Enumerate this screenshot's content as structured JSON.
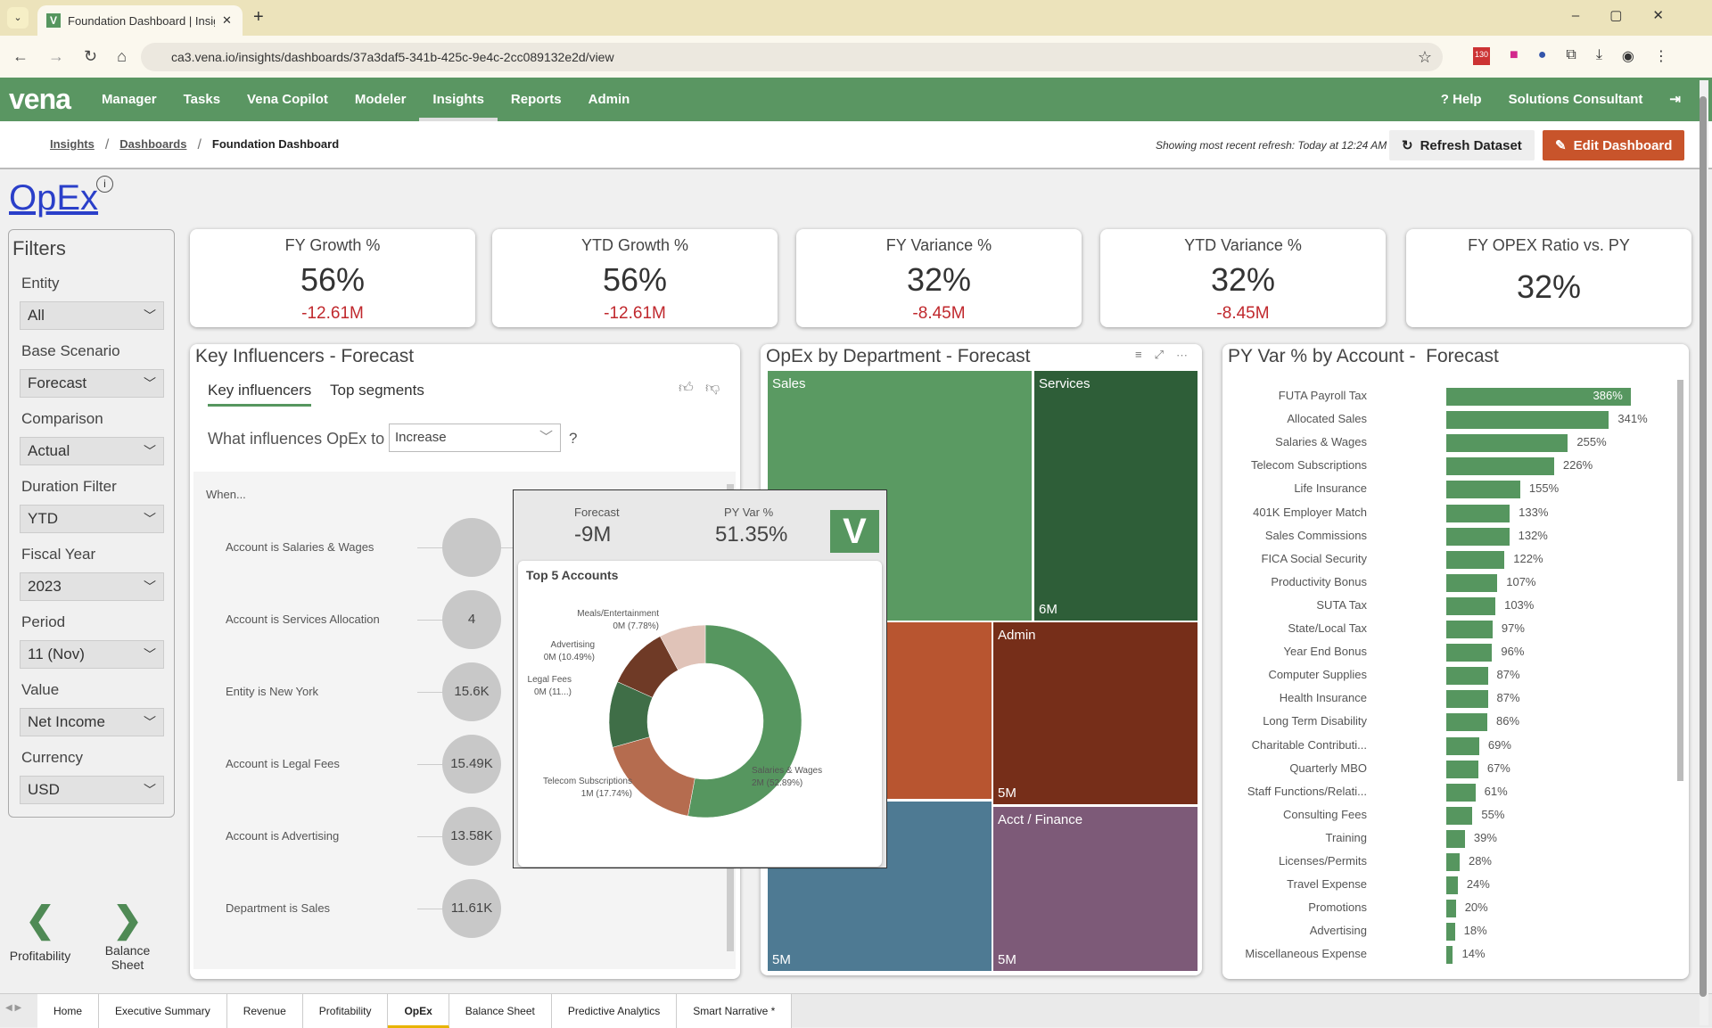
{
  "browser": {
    "tab_title": "Foundation Dashboard | Insights",
    "url": "ca3.vena.io/insights/dashboards/37a3daf5-341b-425c-9e4c-2cc089132e2d/view",
    "ext_badge": "130"
  },
  "nav": {
    "logo": "vena",
    "items": [
      "Manager",
      "Tasks",
      "Vena Copilot",
      "Modeler",
      "Insights",
      "Reports",
      "Admin"
    ],
    "active": "Insights",
    "help": "? Help",
    "user": "Solutions Consultant"
  },
  "breadcrumb": {
    "items": [
      "Insights",
      "Dashboards",
      "Foundation Dashboard"
    ],
    "refresh_note": "Showing most recent refresh: Today at 12:24 AM",
    "refresh_btn": "Refresh Dataset",
    "edit_btn": "Edit Dashboard"
  },
  "colors": {
    "brand": "#5a9662",
    "accent": "#c8542b",
    "negative": "#c0282d"
  },
  "page": {
    "title": "OpEx"
  },
  "filters": {
    "title": "Filters",
    "items": [
      {
        "label": "Entity",
        "value": "All"
      },
      {
        "label": "Base Scenario",
        "value": "Forecast"
      },
      {
        "label": "Comparison",
        "value": "Actual"
      },
      {
        "label": "Duration Filter",
        "value": "YTD"
      },
      {
        "label": "Fiscal Year",
        "value": "2023"
      },
      {
        "label": "Period",
        "value": "11 (Nov)"
      },
      {
        "label": "Value",
        "value": "Net Income"
      },
      {
        "label": "Currency",
        "value": "USD"
      }
    ]
  },
  "nav_arrows": {
    "prev": "Profitability",
    "next": "Balance Sheet"
  },
  "kpis": [
    {
      "title": "FY Growth %",
      "value": "56%",
      "delta": "-12.61M"
    },
    {
      "title": "YTD Growth %",
      "value": "56%",
      "delta": "-12.61M"
    },
    {
      "title": "FY Variance %",
      "value": "32%",
      "delta": "-8.45M"
    },
    {
      "title": "YTD Variance %",
      "value": "32%",
      "delta": "-8.45M"
    },
    {
      "title": "FY OPEX Ratio vs. PY",
      "value": "32%",
      "delta": ""
    }
  ],
  "key_influencers": {
    "title": "Key Influencers -",
    "scenario": "Forecast",
    "tabs": [
      "Key influencers",
      "Top segments"
    ],
    "question": "What influences OpEx to",
    "dropdown": "Increase",
    "qmark": "?",
    "when": "When...",
    "rows": [
      {
        "label": "Account is Salaries & Wages",
        "value": ""
      },
      {
        "label": "Account is Services Allocation",
        "value": "4"
      },
      {
        "label": "Entity is New York",
        "value": "15.6K"
      },
      {
        "label": "Account is Legal Fees",
        "value": "15.49K"
      },
      {
        "label": "Account is Advertising",
        "value": "13.58K"
      },
      {
        "label": "Department is Sales",
        "value": "11.61K"
      }
    ]
  },
  "treemap": {
    "title": "OpEx by Department -",
    "scenario": "Forecast",
    "cells": [
      {
        "name": "Sales",
        "value": "",
        "color": "#5a9a62"
      },
      {
        "name": "Services",
        "value": "6M",
        "color": "#2e5e38"
      },
      {
        "name": "",
        "value": "",
        "color": "#b85530"
      },
      {
        "name": "Admin",
        "value": "5M",
        "color": "#762e19"
      },
      {
        "name": "",
        "value": "5M",
        "color": "#4e7a93"
      },
      {
        "name": "Acct / Finance",
        "value": "5M",
        "color": "#7d5a78"
      }
    ]
  },
  "tooltip": {
    "forecast_label": "Forecast",
    "forecast_value": "-9M",
    "pyvar_label": "PY Var %",
    "pyvar_value": "51.35%",
    "chart_title": "Top 5 Accounts"
  },
  "chart_data": [
    {
      "type": "pie",
      "title": "Top 5 Accounts",
      "donut": true,
      "slices": [
        {
          "name": "Salaries & Wages",
          "label": "2M (52.89%)",
          "percent": 52.89,
          "color": "#56965f"
        },
        {
          "name": "Telecom Subscriptions",
          "label": "1M (17.74%)",
          "percent": 17.74,
          "color": "#b56c4f"
        },
        {
          "name": "Legal Fees",
          "label": "0M (11...)",
          "percent": null,
          "color": "#3f6e47"
        },
        {
          "name": "Advertising",
          "label": "0M (10.49%)",
          "percent": 10.49,
          "color": "#6f3a26"
        },
        {
          "name": "Meals/Entertainment",
          "label": "0M (7.78%)",
          "percent": 7.78,
          "color": "#e0c3b8"
        }
      ]
    },
    {
      "type": "bar",
      "orientation": "horizontal",
      "title": "PY Var % by Account -",
      "subtitle": "Forecast",
      "unit": "%",
      "color": "#56965f",
      "categories": [
        "FUTA Payroll Tax",
        "Allocated Sales",
        "Salaries & Wages",
        "Telecom Subscriptions",
        "Life Insurance",
        "401K Employer Match",
        "Sales Commissions",
        "FICA Social Security",
        "Productivity Bonus",
        "SUTA Tax",
        "State/Local Tax",
        "Year End Bonus",
        "Computer Supplies",
        "Health Insurance",
        "Long Term Disability",
        "Charitable Contributi...",
        "Quarterly MBO",
        "Staff Functions/Relati...",
        "Consulting Fees",
        "Training",
        "Licenses/Permits",
        "Travel Expense",
        "Promotions",
        "Advertising",
        "Miscellaneous Expense"
      ],
      "values": [
        386,
        341,
        255,
        226,
        155,
        133,
        132,
        122,
        107,
        103,
        97,
        96,
        87,
        87,
        86,
        69,
        67,
        61,
        55,
        39,
        28,
        24,
        20,
        18,
        14
      ]
    }
  ],
  "bottom_tabs": {
    "items": [
      "Home",
      "Executive Summary",
      "Revenue",
      "Profitability",
      "OpEx",
      "Balance Sheet",
      "Predictive Analytics",
      "Smart Narrative *"
    ],
    "active": "OpEx"
  }
}
